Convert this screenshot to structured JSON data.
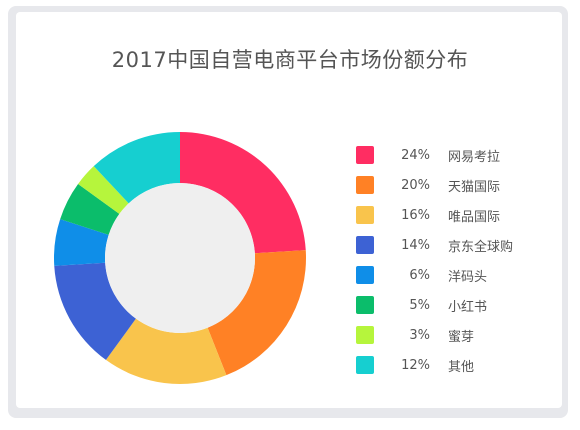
{
  "chart_data": {
    "type": "pie",
    "variant": "donut",
    "title": "2017中国自营电商平台市场份额分布",
    "unit": "%",
    "categories": [
      "网易考拉",
      "天猫国际",
      "唯品国际",
      "京东全球购",
      "洋码头",
      "小红书",
      "蜜芽",
      "其他"
    ],
    "values": [
      24,
      20,
      16,
      14,
      6,
      5,
      3,
      12
    ],
    "labels": [
      "24%",
      "20%",
      "16%",
      "14%",
      "6%",
      "5%",
      "3%",
      "12%"
    ],
    "colors": [
      "#ff2d62",
      "#ff8125",
      "#f9c44c",
      "#3d62d4",
      "#0f8ee8",
      "#0bbd6b",
      "#b6f53c",
      "#16cfd0"
    ],
    "center_color": "#efefef",
    "legend_position": "right"
  }
}
